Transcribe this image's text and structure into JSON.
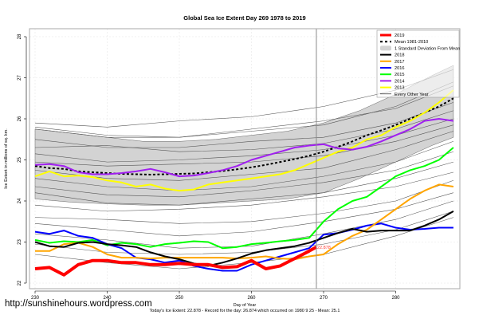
{
  "chart_data": {
    "type": "line",
    "title": "Global Sea Ice Extent Day 269 1978 to 2019",
    "xlabel": "Day of Year",
    "ylabel": "Ice Extent in millions of sq. km.",
    "xlim": [
      229,
      289
    ],
    "ylim": [
      21.9,
      28.2
    ],
    "xticks": [
      230,
      240,
      250,
      260,
      270,
      280
    ],
    "xtick_labels": [
      "230",
      "240",
      "250",
      "260",
      "270",
      "280"
    ],
    "yticks": [
      22,
      23,
      24,
      25,
      26,
      27,
      28
    ],
    "ytick_labels": [
      "22",
      "23",
      "24",
      "25",
      "26",
      "27",
      "28"
    ],
    "grid": true,
    "legend_position": "top-right",
    "current_day": 269,
    "current_value_label": "22.878",
    "legend": [
      {
        "label": "2019",
        "color": "#ff0000",
        "style": "thick"
      },
      {
        "label": "Mean 1981-2010",
        "color": "#000000",
        "style": "dashed"
      },
      {
        "label": "1 Standard Deviation From Mean",
        "color": "#d3d3d3",
        "style": "band"
      },
      {
        "label": "2018",
        "color": "#000000",
        "style": "solid"
      },
      {
        "label": "2017",
        "color": "#ffa500",
        "style": "solid"
      },
      {
        "label": "2016",
        "color": "#0000ff",
        "style": "solid"
      },
      {
        "label": "2015",
        "color": "#00ff00",
        "style": "solid"
      },
      {
        "label": "2014",
        "color": "#a020f0",
        "style": "solid"
      },
      {
        "label": "2013",
        "color": "#ffff00",
        "style": "solid"
      },
      {
        "label": "Every Other Year",
        "color": "#000000",
        "style": "thin"
      }
    ],
    "band": {
      "name": "1 Standard Deviation From Mean",
      "x": [
        230,
        235,
        240,
        245,
        250,
        255,
        260,
        265,
        270,
        275,
        280,
        285,
        288
      ],
      "lower": [
        24.05,
        23.97,
        23.93,
        23.9,
        23.9,
        23.95,
        24.0,
        24.05,
        24.2,
        24.55,
        24.95,
        25.35,
        25.55
      ],
      "upper": [
        25.75,
        25.65,
        25.55,
        25.45,
        25.45,
        25.5,
        25.6,
        25.7,
        25.9,
        26.2,
        26.6,
        27.05,
        27.3
      ]
    },
    "series": [
      {
        "name": "Mean 1981-2010",
        "x": [
          230,
          232,
          234,
          236,
          238,
          240,
          242,
          244,
          246,
          248,
          250,
          252,
          254,
          256,
          258,
          260,
          262,
          264,
          266,
          268,
          270,
          272,
          274,
          276,
          278,
          280,
          282,
          284,
          286,
          288
        ],
        "values": [
          24.85,
          24.8,
          24.78,
          24.72,
          24.7,
          24.68,
          24.66,
          24.65,
          24.64,
          24.65,
          24.66,
          24.67,
          24.7,
          24.73,
          24.77,
          24.82,
          24.88,
          24.95,
          25.02,
          25.1,
          25.2,
          25.32,
          25.45,
          25.6,
          25.72,
          25.85,
          26.0,
          26.15,
          26.3,
          26.5
        ]
      },
      {
        "name": "2013",
        "x": [
          230,
          232,
          234,
          236,
          238,
          240,
          242,
          244,
          246,
          248,
          250,
          252,
          254,
          256,
          258,
          260,
          262,
          264,
          266,
          268,
          270,
          272,
          274,
          276,
          278,
          280,
          282,
          284,
          286,
          288
        ],
        "values": [
          24.6,
          24.72,
          24.6,
          24.62,
          24.58,
          24.5,
          24.45,
          24.35,
          24.4,
          24.3,
          24.25,
          24.28,
          24.4,
          24.45,
          24.5,
          24.55,
          24.6,
          24.65,
          24.75,
          24.9,
          25.05,
          25.2,
          25.3,
          25.5,
          25.6,
          25.8,
          25.95,
          26.15,
          26.4,
          26.7
        ]
      },
      {
        "name": "2014",
        "x": [
          230,
          232,
          234,
          236,
          238,
          240,
          242,
          244,
          246,
          248,
          250,
          252,
          254,
          256,
          258,
          260,
          262,
          264,
          266,
          268,
          270,
          272,
          274,
          276,
          278,
          280,
          282,
          284,
          286,
          288
        ],
        "values": [
          24.88,
          24.9,
          24.85,
          24.7,
          24.65,
          24.65,
          24.68,
          24.72,
          24.78,
          24.7,
          24.6,
          24.62,
          24.68,
          24.75,
          24.85,
          25.0,
          25.1,
          25.2,
          25.3,
          25.35,
          25.38,
          25.28,
          25.25,
          25.32,
          25.45,
          25.6,
          25.75,
          25.95,
          26.0,
          25.95
        ]
      },
      {
        "name": "2015",
        "x": [
          230,
          232,
          234,
          236,
          238,
          240,
          242,
          244,
          246,
          248,
          250,
          252,
          254,
          256,
          258,
          260,
          262,
          264,
          266,
          268,
          270,
          272,
          274,
          276,
          278,
          280,
          282,
          284,
          286,
          288
        ],
        "values": [
          23.05,
          22.98,
          23.02,
          23.0,
          23.05,
          22.92,
          22.98,
          22.95,
          22.88,
          22.95,
          22.98,
          23.02,
          23.0,
          22.85,
          22.88,
          22.95,
          22.98,
          23.02,
          23.05,
          23.1,
          23.5,
          23.8,
          24.0,
          24.1,
          24.35,
          24.6,
          24.75,
          24.85,
          25.0,
          25.3
        ]
      },
      {
        "name": "2016",
        "x": [
          230,
          232,
          234,
          236,
          238,
          240,
          242,
          244,
          246,
          248,
          250,
          252,
          254,
          256,
          258,
          260,
          262,
          264,
          266,
          268,
          270,
          272,
          274,
          276,
          278,
          280,
          282,
          284,
          286,
          288
        ],
        "values": [
          23.25,
          23.2,
          23.28,
          23.15,
          23.1,
          22.95,
          22.85,
          22.62,
          22.58,
          22.5,
          22.55,
          22.42,
          22.35,
          22.3,
          22.3,
          22.45,
          22.55,
          22.65,
          22.75,
          22.85,
          23.18,
          23.22,
          23.3,
          23.4,
          23.45,
          23.35,
          23.3,
          23.32,
          23.35,
          23.35
        ]
      },
      {
        "name": "2017",
        "x": [
          230,
          232,
          234,
          236,
          238,
          240,
          242,
          244,
          246,
          248,
          250,
          252,
          254,
          256,
          258,
          260,
          262,
          264,
          266,
          268,
          270,
          272,
          274,
          276,
          278,
          280,
          282,
          284,
          286,
          288
        ],
        "values": [
          22.78,
          22.78,
          22.95,
          22.98,
          22.88,
          22.7,
          22.62,
          22.62,
          22.6,
          22.62,
          22.62,
          22.62,
          22.62,
          22.62,
          22.6,
          22.62,
          22.65,
          22.6,
          22.58,
          22.65,
          22.7,
          22.95,
          23.15,
          23.3,
          23.55,
          23.8,
          24.05,
          24.25,
          24.4,
          24.35
        ]
      },
      {
        "name": "2018",
        "x": [
          230,
          232,
          234,
          236,
          238,
          240,
          242,
          244,
          246,
          248,
          250,
          252,
          254,
          256,
          258,
          260,
          262,
          264,
          266,
          268,
          270,
          272,
          274,
          276,
          278,
          280,
          282,
          284,
          286,
          288
        ],
        "values": [
          23.0,
          22.9,
          22.88,
          22.98,
          23.0,
          22.95,
          22.92,
          22.88,
          22.75,
          22.65,
          22.58,
          22.48,
          22.42,
          22.5,
          22.6,
          22.72,
          22.8,
          22.85,
          22.9,
          22.98,
          23.1,
          23.22,
          23.32,
          23.25,
          23.28,
          23.28,
          23.28,
          23.4,
          23.55,
          23.75
        ]
      },
      {
        "name": "2019",
        "x": [
          230,
          232,
          234,
          236,
          238,
          240,
          242,
          244,
          246,
          248,
          250,
          252,
          254,
          256,
          258,
          260,
          262,
          264,
          266,
          268,
          269
        ],
        "values": [
          22.35,
          22.38,
          22.2,
          22.45,
          22.55,
          22.55,
          22.5,
          22.5,
          22.45,
          22.45,
          22.48,
          22.45,
          22.45,
          22.38,
          22.4,
          22.55,
          22.35,
          22.42,
          22.6,
          22.78,
          22.878
        ]
      }
    ],
    "every_other_year": [
      {
        "x": [
          230,
          240,
          250,
          260,
          270,
          280,
          288
        ],
        "values": [
          25.9,
          25.8,
          25.95,
          26.05,
          26.3,
          26.7,
          27.2
        ]
      },
      {
        "x": [
          230,
          240,
          250,
          260,
          270,
          280,
          288
        ],
        "values": [
          25.8,
          25.6,
          25.55,
          25.75,
          25.95,
          26.25,
          26.8
        ]
      },
      {
        "x": [
          230,
          240,
          250,
          260,
          270,
          280,
          288
        ],
        "values": [
          25.75,
          25.55,
          25.55,
          25.7,
          25.85,
          26.3,
          26.9
        ]
      },
      {
        "x": [
          230,
          240,
          250,
          260,
          270,
          280,
          288
        ],
        "values": [
          25.5,
          25.3,
          25.3,
          25.45,
          25.55,
          25.9,
          26.4
        ]
      },
      {
        "x": [
          230,
          240,
          250,
          260,
          270,
          280,
          288
        ],
        "values": [
          25.3,
          25.35,
          25.2,
          25.25,
          25.4,
          25.75,
          26.2
        ]
      },
      {
        "x": [
          230,
          240,
          250,
          260,
          270,
          280,
          288
        ],
        "values": [
          25.15,
          24.95,
          25.0,
          25.1,
          25.25,
          25.6,
          26.0
        ]
      },
      {
        "x": [
          230,
          240,
          250,
          260,
          270,
          280,
          288
        ],
        "values": [
          24.95,
          24.85,
          24.9,
          24.95,
          25.1,
          25.45,
          25.85
        ]
      },
      {
        "x": [
          230,
          240,
          250,
          260,
          270,
          280,
          288
        ],
        "values": [
          24.75,
          24.55,
          24.5,
          24.65,
          24.8,
          25.25,
          25.7
        ]
      },
      {
        "x": [
          230,
          240,
          250,
          260,
          270,
          280,
          288
        ],
        "values": [
          24.55,
          24.35,
          24.25,
          24.35,
          24.6,
          24.95,
          25.45
        ]
      },
      {
        "x": [
          230,
          240,
          250,
          260,
          270,
          280,
          288
        ],
        "values": [
          24.35,
          24.15,
          24.1,
          24.25,
          24.45,
          24.75,
          25.2
        ]
      },
      {
        "x": [
          230,
          240,
          250,
          260,
          270,
          280,
          288
        ],
        "values": [
          24.2,
          23.95,
          23.9,
          24.05,
          24.2,
          24.55,
          24.95
        ]
      },
      {
        "x": [
          230,
          240,
          250,
          260,
          270,
          280,
          288
        ],
        "values": [
          23.9,
          23.75,
          23.8,
          23.9,
          24.1,
          24.35,
          24.7
        ]
      },
      {
        "x": [
          230,
          240,
          250,
          260,
          270,
          280,
          288
        ],
        "values": [
          23.6,
          23.55,
          23.45,
          23.5,
          23.7,
          24.0,
          24.5
        ]
      },
      {
        "x": [
          230,
          240,
          250,
          260,
          270,
          280,
          288
        ],
        "values": [
          23.45,
          23.3,
          23.15,
          23.25,
          23.5,
          23.8,
          24.2
        ]
      },
      {
        "x": [
          230,
          240,
          250,
          260,
          270,
          280,
          288
        ],
        "values": [
          23.2,
          23.05,
          22.85,
          22.9,
          23.2,
          23.55,
          24.0
        ]
      },
      {
        "x": [
          230,
          240,
          250,
          260,
          270,
          280,
          288
        ],
        "values": [
          22.95,
          22.75,
          22.7,
          22.75,
          22.95,
          23.3,
          23.75
        ]
      },
      {
        "x": [
          230,
          240,
          250,
          260,
          270,
          280,
          288
        ],
        "values": [
          22.7,
          22.5,
          22.35,
          22.5,
          22.7,
          23.15,
          23.6
        ]
      }
    ]
  },
  "caption": "Today's Ice Extent: 22.878  - Record for the day: 26.874 which occurred on 1980 9 25  - Mean: 25.1",
  "watermark": "http://sunshinehours.wordpress.com"
}
